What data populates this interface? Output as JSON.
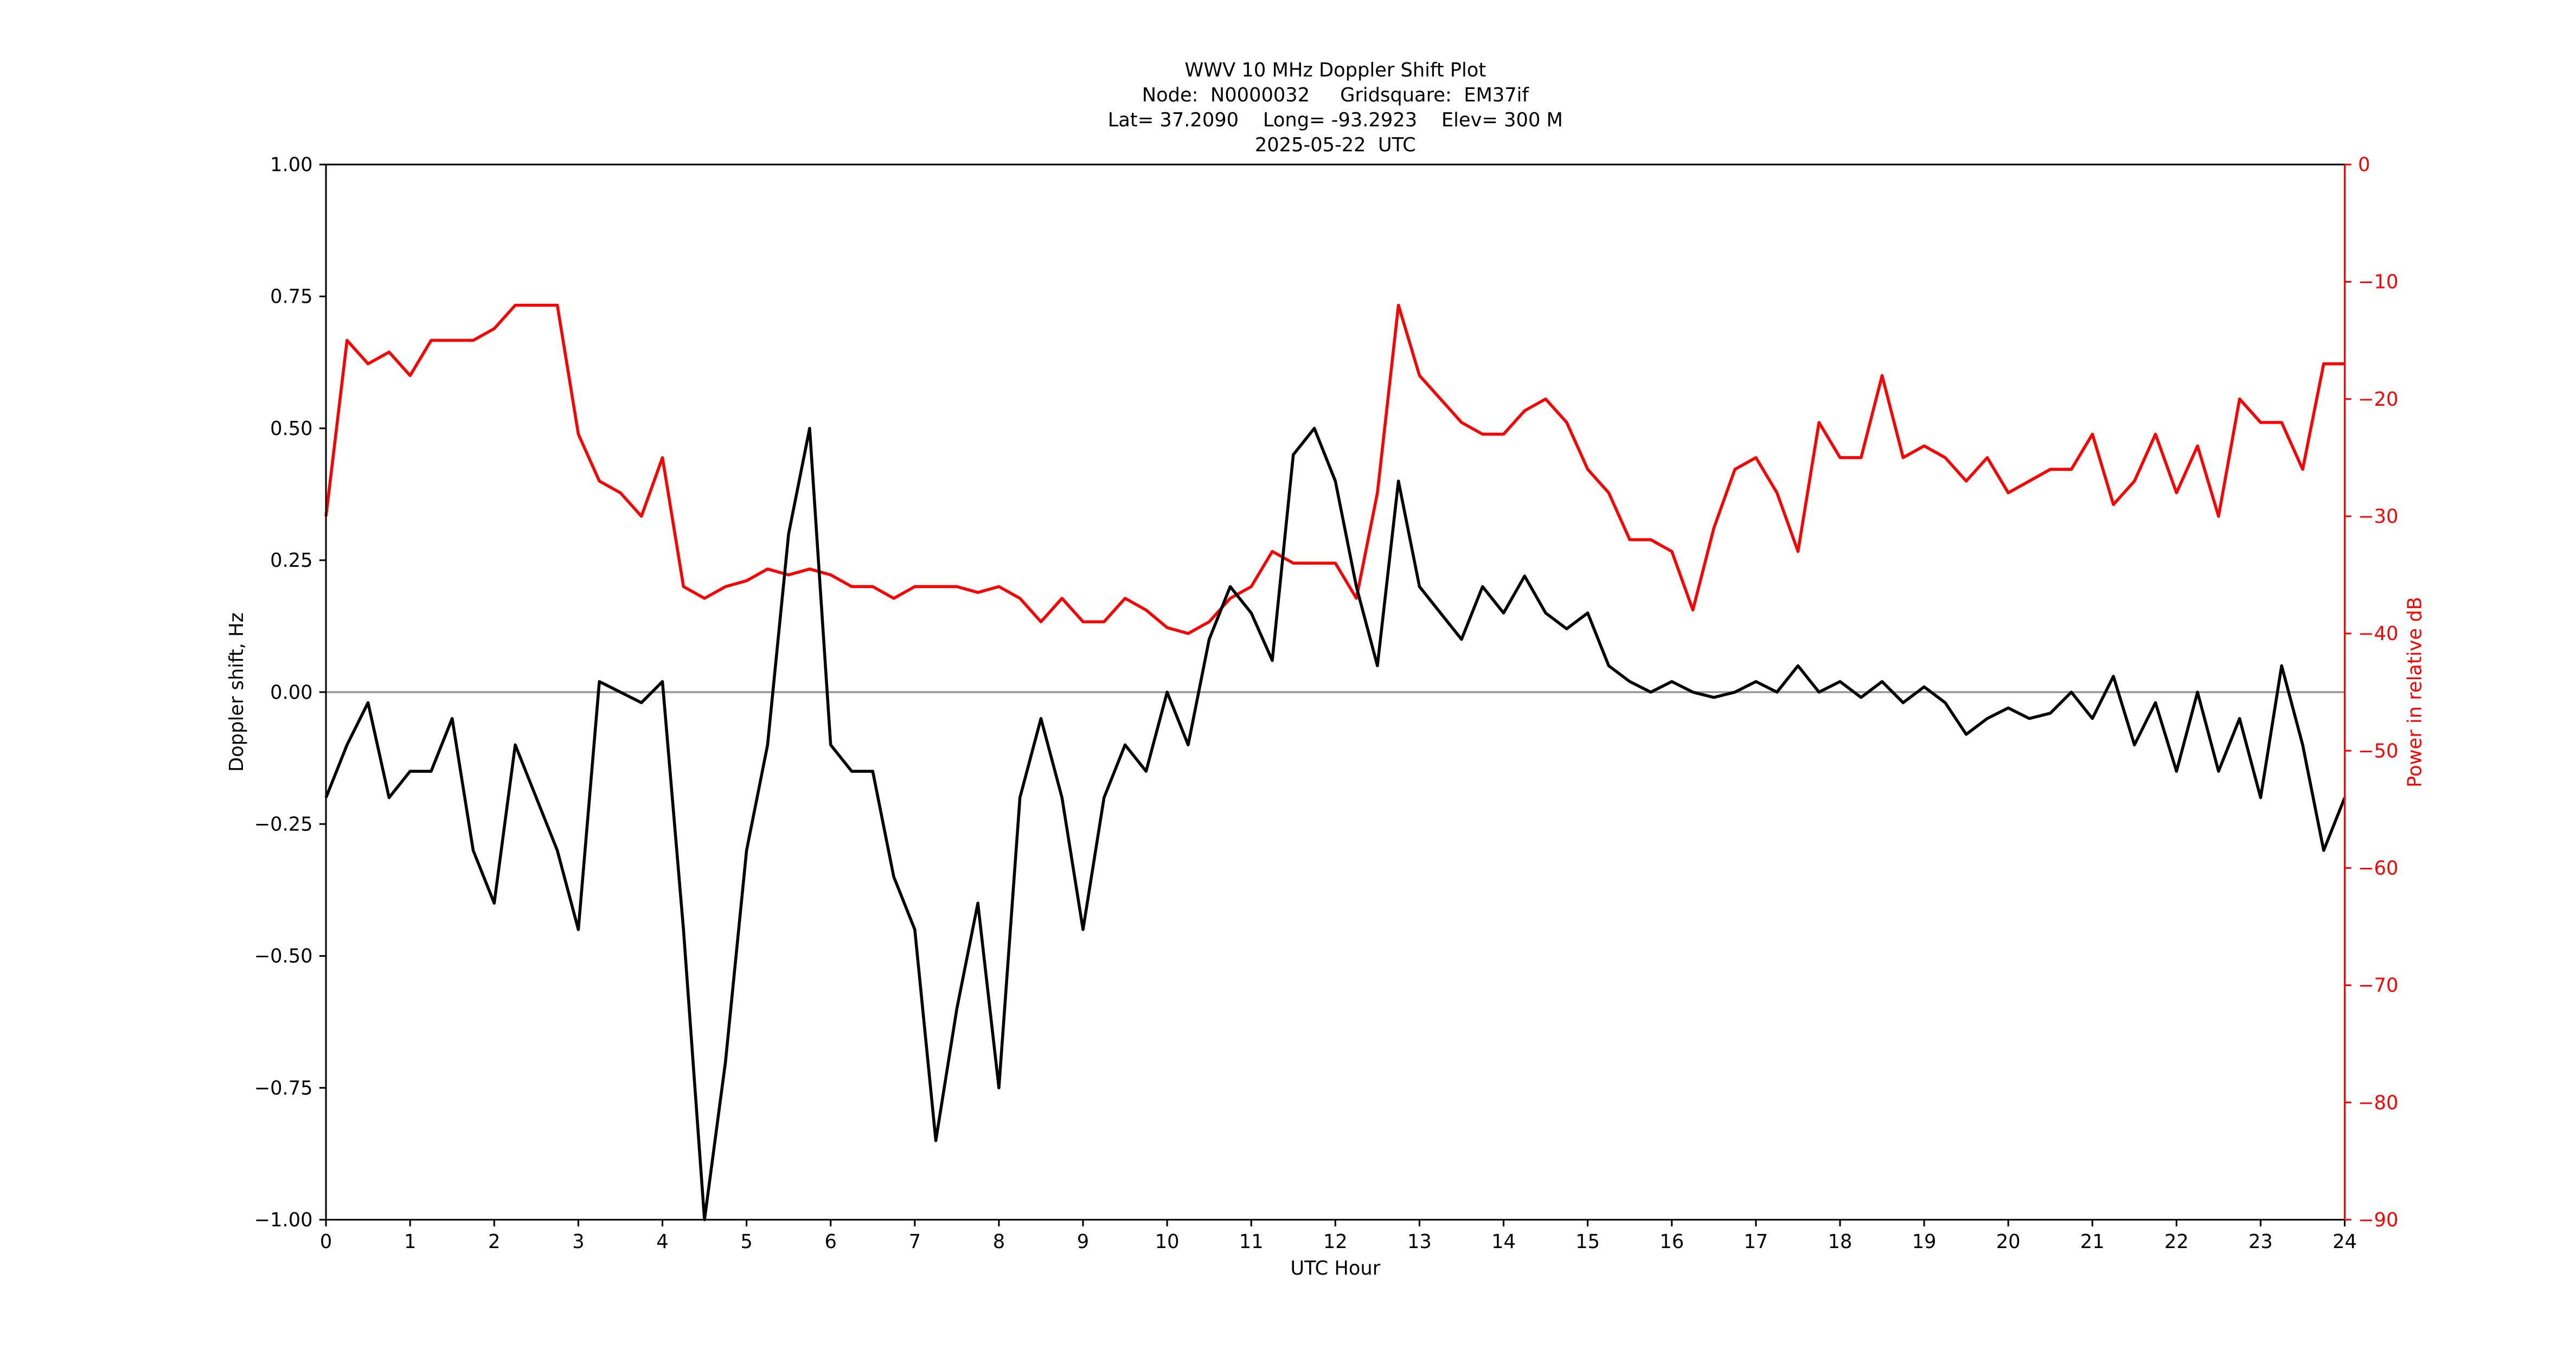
{
  "chart_data": {
    "type": "line",
    "title": [
      "WWV 10 MHz Doppler Shift Plot",
      "Node:  N0000032     Gridsquare:  EM37if",
      "Lat= 37.2090    Long= -93.2923    Elev= 300 M",
      "2025-05-22  UTC"
    ],
    "xlabel": "UTC Hour",
    "ylabel": "Doppler shift, Hz",
    "y2label": "Power in relative dB",
    "y2color": "#ff0000",
    "axhline": 0,
    "axhline_color": "#999999",
    "x": [
      0,
      0.25,
      0.5,
      0.75,
      1,
      1.25,
      1.5,
      1.75,
      2,
      2.25,
      2.5,
      2.75,
      3,
      3.25,
      3.5,
      3.75,
      4,
      4.25,
      4.5,
      4.75,
      5,
      5.25,
      5.5,
      5.75,
      6,
      6.25,
      6.5,
      6.75,
      7,
      7.25,
      7.5,
      7.75,
      8,
      8.25,
      8.5,
      8.75,
      9,
      9.25,
      9.5,
      9.75,
      10,
      10.25,
      10.5,
      10.75,
      11,
      11.25,
      11.5,
      11.75,
      12,
      12.25,
      12.5,
      12.75,
      13,
      13.25,
      13.5,
      13.75,
      14,
      14.25,
      14.5,
      14.75,
      15,
      15.25,
      15.5,
      15.75,
      16,
      16.25,
      16.5,
      16.75,
      17,
      17.25,
      17.5,
      17.75,
      18,
      18.25,
      18.5,
      18.75,
      19,
      19.25,
      19.5,
      19.75,
      20,
      20.25,
      20.5,
      20.75,
      21,
      21.25,
      21.5,
      21.75,
      22,
      22.25,
      22.5,
      22.75,
      23,
      23.25,
      23.5,
      23.75,
      24
    ],
    "series": [
      {
        "name": "Doppler shift",
        "color": "#000000",
        "values": [
          -0.2,
          -0.1,
          -0.02,
          -0.2,
          -0.15,
          -0.15,
          -0.05,
          -0.3,
          -0.4,
          -0.1,
          -0.2,
          -0.3,
          -0.45,
          0.02,
          0.0,
          -0.02,
          0.02,
          -0.45,
          -1.0,
          -0.7,
          -0.3,
          -0.1,
          0.3,
          0.5,
          -0.1,
          -0.15,
          -0.15,
          -0.35,
          -0.45,
          -0.85,
          -0.6,
          -0.4,
          -0.75,
          -0.2,
          -0.05,
          -0.2,
          -0.45,
          -0.2,
          -0.1,
          -0.15,
          0.0,
          -0.1,
          0.1,
          0.2,
          0.15,
          0.06,
          0.45,
          0.5,
          0.4,
          0.2,
          0.05,
          0.4,
          0.2,
          0.15,
          0.1,
          0.2,
          0.15,
          0.22,
          0.15,
          0.12,
          0.15,
          0.05,
          0.02,
          0.0,
          0.02,
          0.0,
          -0.01,
          0.0,
          0.02,
          0.0,
          0.05,
          0.0,
          0.02,
          -0.01,
          0.02,
          -0.02,
          0.01,
          -0.02,
          -0.08,
          -0.05,
          -0.03,
          -0.05,
          -0.04,
          0.0,
          -0.05,
          0.03,
          -0.1,
          -0.02,
          -0.15,
          0.0,
          -0.15,
          -0.05,
          -0.2,
          0.05,
          -0.1,
          -0.3,
          -0.2
        ]
      },
      {
        "name": "Power",
        "color": "#ff0000",
        "axis": "y2",
        "values": [
          -30,
          -15,
          -17,
          -16,
          -18,
          -15,
          -15,
          -15,
          -14,
          -12,
          -12,
          -12,
          -23,
          -27,
          -28,
          -30,
          -25,
          -36,
          -37,
          -36,
          -35.5,
          -34.5,
          -35,
          -34.5,
          -35,
          -36,
          -36,
          -37,
          -36,
          -36,
          -36,
          -36.5,
          -36,
          -37,
          -39,
          -37,
          -39,
          -39,
          -37,
          -38,
          -39.5,
          -40,
          -39,
          -37,
          -36,
          -33,
          -34,
          -34,
          -34,
          -37,
          -28,
          -12,
          -18,
          -20,
          -22,
          -23,
          -23,
          -21,
          -20,
          -22,
          -26,
          -28,
          -32,
          -32,
          -33,
          -38,
          -31,
          -26,
          -25,
          -28,
          -33,
          -22,
          -25,
          -25,
          -18,
          -25,
          -24,
          -25,
          -27,
          -25,
          -28,
          -27,
          -26,
          -26,
          -23,
          -29,
          -27,
          -23,
          -28,
          -24,
          -30,
          -20,
          -22,
          -22,
          -26,
          -17,
          -17
        ]
      }
    ],
    "xlim": [
      0,
      24
    ],
    "xticks": [
      0,
      1,
      2,
      3,
      4,
      5,
      6,
      7,
      8,
      9,
      10,
      11,
      12,
      13,
      14,
      15,
      16,
      17,
      18,
      19,
      20,
      21,
      22,
      23,
      24
    ],
    "ylim": [
      -1,
      1
    ],
    "yticks": [
      {
        "value": -1,
        "label": "−1.00"
      },
      {
        "value": -0.75,
        "label": "−0.75"
      },
      {
        "value": -0.5,
        "label": "−0.50"
      },
      {
        "value": -0.25,
        "label": "−0.25"
      },
      {
        "value": 0,
        "label": "0.00"
      },
      {
        "value": 0.25,
        "label": "0.25"
      },
      {
        "value": 0.5,
        "label": "0.50"
      },
      {
        "value": 0.75,
        "label": "0.75"
      },
      {
        "value": 1,
        "label": "1.00"
      }
    ],
    "y2lim": [
      -90,
      0
    ],
    "y2ticks": [
      {
        "value": -90,
        "label": "−90"
      },
      {
        "value": -80,
        "label": "−80"
      },
      {
        "value": -70,
        "label": "−70"
      },
      {
        "value": -60,
        "label": "−60"
      },
      {
        "value": -50,
        "label": "−50"
      },
      {
        "value": -40,
        "label": "−40"
      },
      {
        "value": -30,
        "label": "−30"
      },
      {
        "value": -20,
        "label": "−20"
      },
      {
        "value": -10,
        "label": "−10"
      },
      0
    ]
  }
}
